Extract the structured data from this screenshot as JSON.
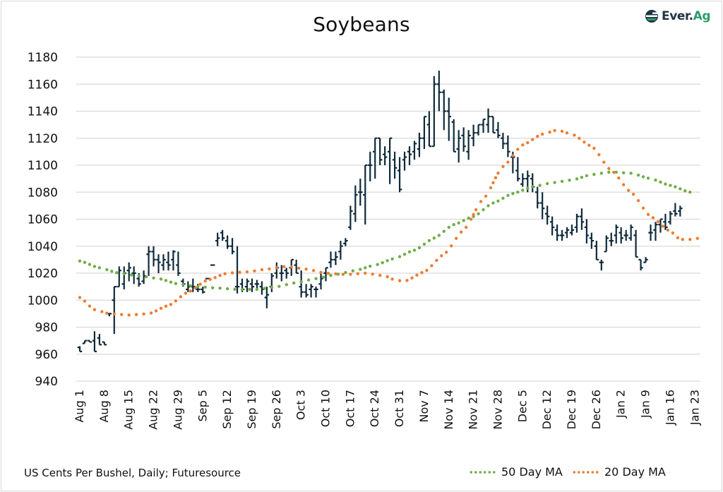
{
  "header": {
    "title": "Soybeans",
    "logo": {
      "text_main": "Ever.",
      "text_accent": "Ag",
      "icon": "ever-ag-logo-icon",
      "color_main": "#1f3442",
      "color_accent": "#2e9c6a"
    }
  },
  "footer": {
    "source": "US Cents Per Bushel, Daily; Futuresource"
  },
  "legend": [
    {
      "label": "50 Day MA",
      "color": "#70ad47",
      "style": "dotted"
    },
    {
      "label": "20 Day MA",
      "color": "#ed7d31",
      "style": "dotted"
    }
  ],
  "colors": {
    "bars": "#0f2a3a",
    "grid": "#d9d9d9",
    "ma50": "#70ad47",
    "ma20": "#ed7d31"
  },
  "chart_data": {
    "type": "ohlc",
    "title": "Soybeans",
    "xlabel": "",
    "ylabel": "US Cents Per Bushel",
    "ylim": [
      940,
      1180
    ],
    "yticks": [
      940,
      960,
      980,
      1000,
      1020,
      1040,
      1060,
      1080,
      1100,
      1120,
      1140,
      1160,
      1180
    ],
    "grid": true,
    "legend_position": "bottom-right",
    "categories": [
      "Aug 1",
      "Aug 8",
      "Aug 15",
      "Aug 22",
      "Aug 29",
      "Sep 5",
      "Sep 12",
      "Sep 19",
      "Sep 26",
      "Oct 3",
      "Oct 10",
      "Oct 17",
      "Oct 24",
      "Oct 31",
      "Nov 7",
      "Nov 14",
      "Nov 21",
      "Nov 28",
      "Dec 5",
      "Dec 12",
      "Dec 19",
      "Dec 26",
      "Jan 2",
      "Jan 9",
      "Jan 16",
      "Jan 23"
    ],
    "ohlc": [
      [
        965,
        966,
        962,
        962
      ],
      [
        968,
        970,
        968,
        970
      ],
      [
        970,
        970,
        969,
        969
      ],
      [
        970,
        977,
        962,
        962
      ],
      [
        972,
        975,
        967,
        967
      ],
      [
        969,
        969,
        967,
        967
      ],
      [
        990,
        990,
        988,
        990
      ],
      [
        1000,
        1010,
        975,
        1010
      ],
      [
        1010,
        1025,
        1010,
        1022
      ],
      [
        1012,
        1025,
        1008,
        1020
      ],
      [
        1022,
        1028,
        1014,
        1024
      ],
      [
        1020,
        1025,
        1012,
        1020
      ],
      [
        1016,
        1020,
        1010,
        1012
      ],
      [
        1014,
        1022,
        1012,
        1018
      ],
      [
        1034,
        1040,
        1018,
        1036
      ],
      [
        1036,
        1040,
        1025,
        1030
      ],
      [
        1030,
        1034,
        1020,
        1028
      ],
      [
        1026,
        1034,
        1022,
        1030
      ],
      [
        1028,
        1036,
        1022,
        1026
      ],
      [
        1030,
        1037,
        1022,
        1036
      ],
      [
        1026,
        1036,
        1018,
        1020
      ],
      [
        1014,
        1016,
        1010,
        1012
      ],
      [
        1008,
        1014,
        1006,
        1010
      ],
      [
        1010,
        1016,
        1006,
        1010
      ],
      [
        1008,
        1012,
        1006,
        1008
      ],
      [
        1008,
        1010,
        1005,
        1006
      ],
      [
        1016,
        1016,
        1016,
        1016
      ],
      [
        1026,
        1026,
        1026,
        1026
      ],
      [
        1044,
        1050,
        1040,
        1046
      ],
      [
        1050,
        1052,
        1044,
        1046
      ],
      [
        1044,
        1048,
        1038,
        1040
      ],
      [
        1040,
        1046,
        1034,
        1036
      ],
      [
        1010,
        1040,
        1005,
        1010
      ],
      [
        1012,
        1016,
        1006,
        1008
      ],
      [
        1010,
        1016,
        1006,
        1014
      ],
      [
        1012,
        1016,
        1006,
        1010
      ],
      [
        1012,
        1015,
        1008,
        1012
      ],
      [
        1010,
        1014,
        1004,
        1008
      ],
      [
        1002,
        1010,
        994,
        1004
      ],
      [
        1010,
        1020,
        1006,
        1018
      ],
      [
        1020,
        1028,
        1016,
        1024
      ],
      [
        1020,
        1026,
        1014,
        1020
      ],
      [
        1022,
        1024,
        1016,
        1020
      ],
      [
        1024,
        1030,
        1018,
        1030
      ],
      [
        1026,
        1030,
        1020,
        1020
      ],
      [
        1010,
        1022,
        1002,
        1006
      ],
      [
        1006,
        1012,
        1002,
        1004
      ],
      [
        1008,
        1012,
        1002,
        1010
      ],
      [
        1008,
        1010,
        1002,
        1008
      ],
      [
        1012,
        1020,
        1008,
        1016
      ],
      [
        1020,
        1024,
        1014,
        1024
      ],
      [
        1028,
        1036,
        1024,
        1030
      ],
      [
        1030,
        1036,
        1026,
        1032
      ],
      [
        1036,
        1044,
        1030,
        1040
      ],
      [
        1042,
        1046,
        1040,
        1044
      ],
      [
        1054,
        1070,
        1052,
        1066
      ],
      [
        1064,
        1085,
        1058,
        1078
      ],
      [
        1080,
        1090,
        1070,
        1080
      ],
      [
        1078,
        1100,
        1056,
        1100
      ],
      [
        1100,
        1110,
        1088,
        1100
      ],
      [
        1110,
        1120,
        1090,
        1120
      ],
      [
        1120,
        1120,
        1100,
        1104
      ],
      [
        1108,
        1114,
        1100,
        1106
      ],
      [
        1110,
        1120,
        1086,
        1120
      ],
      [
        1104,
        1110,
        1090,
        1098
      ],
      [
        1096,
        1106,
        1080,
        1082
      ],
      [
        1104,
        1110,
        1096,
        1106
      ],
      [
        1110,
        1114,
        1100,
        1108
      ],
      [
        1110,
        1118,
        1104,
        1116
      ],
      [
        1112,
        1124,
        1106,
        1120
      ],
      [
        1120,
        1136,
        1112,
        1136
      ],
      [
        1130,
        1140,
        1114,
        1114
      ],
      [
        1114,
        1166,
        1114,
        1160
      ],
      [
        1160,
        1170,
        1140,
        1154
      ],
      [
        1154,
        1156,
        1126,
        1140
      ],
      [
        1140,
        1150,
        1118,
        1136
      ],
      [
        1132,
        1134,
        1110,
        1110
      ],
      [
        1112,
        1126,
        1102,
        1120
      ],
      [
        1122,
        1128,
        1110,
        1114
      ],
      [
        1110,
        1126,
        1104,
        1122
      ],
      [
        1120,
        1130,
        1114,
        1124
      ],
      [
        1124,
        1130,
        1122,
        1130
      ],
      [
        1130,
        1134,
        1124,
        1134
      ],
      [
        1130,
        1142,
        1124,
        1136
      ],
      [
        1136,
        1136,
        1124,
        1124
      ],
      [
        1126,
        1132,
        1120,
        1122
      ],
      [
        1120,
        1124,
        1112,
        1116
      ],
      [
        1116,
        1122,
        1106,
        1110
      ],
      [
        1106,
        1110,
        1094,
        1106
      ],
      [
        1096,
        1106,
        1088,
        1090
      ],
      [
        1086,
        1094,
        1084,
        1090
      ],
      [
        1090,
        1096,
        1080,
        1092
      ],
      [
        1090,
        1094,
        1080,
        1084
      ],
      [
        1080,
        1084,
        1068,
        1072
      ],
      [
        1072,
        1080,
        1060,
        1068
      ],
      [
        1064,
        1070,
        1056,
        1062
      ],
      [
        1058,
        1062,
        1048,
        1054
      ],
      [
        1052,
        1056,
        1044,
        1048
      ],
      [
        1048,
        1052,
        1044,
        1048
      ],
      [
        1050,
        1054,
        1046,
        1052
      ],
      [
        1050,
        1056,
        1048,
        1052
      ],
      [
        1054,
        1064,
        1050,
        1062
      ],
      [
        1062,
        1068,
        1052,
        1058
      ],
      [
        1054,
        1060,
        1042,
        1048
      ],
      [
        1046,
        1050,
        1038,
        1044
      ],
      [
        1040,
        1044,
        1030,
        1030
      ],
      [
        1028,
        1030,
        1022,
        1028
      ],
      [
        1036,
        1048,
        1036,
        1046
      ],
      [
        1044,
        1050,
        1040,
        1044
      ],
      [
        1048,
        1056,
        1042,
        1054
      ],
      [
        1050,
        1054,
        1042,
        1046
      ],
      [
        1048,
        1052,
        1044,
        1048
      ],
      [
        1046,
        1056,
        1044,
        1054
      ],
      [
        1048,
        1052,
        1032,
        1032
      ],
      [
        1030,
        1030,
        1022,
        1024
      ],
      [
        1028,
        1032,
        1028,
        1030
      ],
      [
        1050,
        1056,
        1044,
        1050
      ],
      [
        1052,
        1058,
        1044,
        1056
      ],
      [
        1056,
        1060,
        1050,
        1060
      ],
      [
        1058,
        1064,
        1052,
        1054
      ],
      [
        1058,
        1066,
        1056,
        1064
      ],
      [
        1066,
        1072,
        1062,
        1064
      ],
      [
        1066,
        1070,
        1062,
        1068
      ]
    ],
    "series": [
      {
        "name": "50 Day MA",
        "color": "#70ad47",
        "points": [
          [
            0,
            1029
          ],
          [
            4,
            1024
          ],
          [
            8,
            1020
          ],
          [
            12,
            1018
          ],
          [
            16,
            1016
          ],
          [
            20,
            1012
          ],
          [
            24,
            1010
          ],
          [
            28,
            1009
          ],
          [
            32,
            1008
          ],
          [
            36,
            1008
          ],
          [
            40,
            1010
          ],
          [
            44,
            1013
          ],
          [
            48,
            1016
          ],
          [
            52,
            1019
          ],
          [
            56,
            1022
          ],
          [
            60,
            1026
          ],
          [
            64,
            1031
          ],
          [
            68,
            1037
          ],
          [
            72,
            1046
          ],
          [
            76,
            1056
          ],
          [
            80,
            1062
          ],
          [
            84,
            1072
          ],
          [
            88,
            1079
          ],
          [
            92,
            1084
          ],
          [
            96,
            1087
          ],
          [
            100,
            1089
          ],
          [
            104,
            1093
          ],
          [
            108,
            1095
          ],
          [
            112,
            1094
          ],
          [
            116,
            1090
          ],
          [
            120,
            1085
          ],
          [
            124,
            1080
          ]
        ]
      },
      {
        "name": "20 Day MA",
        "color": "#ed7d31",
        "points": [
          [
            0,
            1002
          ],
          [
            3,
            993
          ],
          [
            6,
            990
          ],
          [
            10,
            989
          ],
          [
            14,
            990
          ],
          [
            18,
            996
          ],
          [
            22,
            1006
          ],
          [
            26,
            1015
          ],
          [
            30,
            1020
          ],
          [
            34,
            1021
          ],
          [
            38,
            1023
          ],
          [
            42,
            1025
          ],
          [
            46,
            1023
          ],
          [
            50,
            1020
          ],
          [
            54,
            1019
          ],
          [
            58,
            1020
          ],
          [
            62,
            1018
          ],
          [
            64,
            1015
          ],
          [
            66,
            1014
          ],
          [
            70,
            1021
          ],
          [
            74,
            1034
          ],
          [
            78,
            1052
          ],
          [
            82,
            1075
          ],
          [
            86,
            1099
          ],
          [
            90,
            1115
          ],
          [
            94,
            1123
          ],
          [
            97,
            1126
          ],
          [
            100,
            1123
          ],
          [
            104,
            1114
          ],
          [
            108,
            1096
          ],
          [
            112,
            1080
          ],
          [
            116,
            1062
          ],
          [
            120,
            1051
          ],
          [
            122,
            1045
          ],
          [
            124,
            1045
          ],
          [
            126,
            1046
          ]
        ]
      }
    ]
  }
}
